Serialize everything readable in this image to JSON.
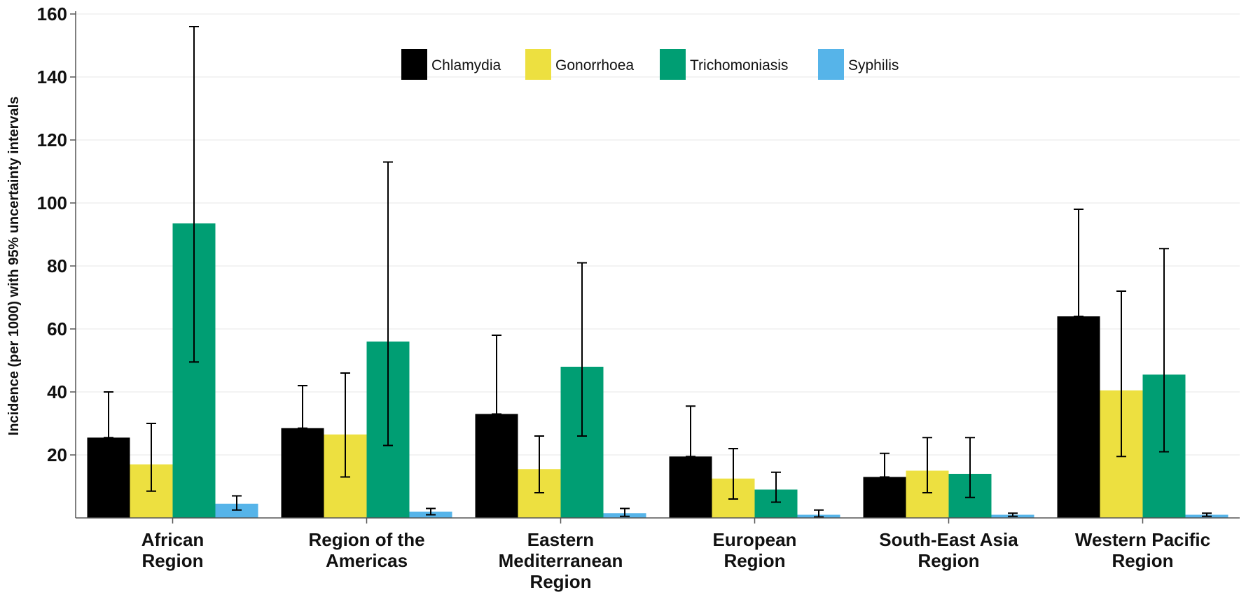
{
  "chart_data": {
    "type": "bar",
    "ylabel": "Incidence (per 1000) with 95% uncertainty intervals",
    "ylim": [
      0,
      160
    ],
    "yticks": [
      20,
      40,
      60,
      80,
      100,
      120,
      140,
      160
    ],
    "grid": "horizontal",
    "legend_position": "top-center",
    "categories": [
      [
        "African",
        "Region"
      ],
      [
        "Region of the",
        "Americas"
      ],
      [
        "Eastern",
        "Mediterranean",
        "Region"
      ],
      [
        "European",
        "Region"
      ],
      [
        "South-East Asia",
        "Region"
      ],
      [
        "Western Pacific",
        "Region"
      ]
    ],
    "series": [
      {
        "name": "Chlamydia",
        "color": "#000000",
        "values": [
          25.5,
          28.5,
          33,
          19.5,
          13,
          64
        ],
        "lower": [
          25.5,
          28.5,
          33,
          19.5,
          13,
          64
        ],
        "upper": [
          40,
          42,
          58,
          35.5,
          20.5,
          98
        ]
      },
      {
        "name": "Gonorrhoea",
        "color": "#ede040",
        "values": [
          17,
          26.5,
          15.5,
          12.5,
          15,
          40.5
        ],
        "lower": [
          8.5,
          13,
          8,
          6,
          8,
          19.5
        ],
        "upper": [
          30,
          46,
          26,
          22,
          25.5,
          72
        ]
      },
      {
        "name": "Trichomoniasis",
        "color": "#009e73",
        "values": [
          93.5,
          56,
          48,
          9,
          14,
          45.5
        ],
        "lower": [
          49.5,
          23,
          26,
          5,
          6.5,
          21
        ],
        "upper": [
          156,
          113,
          81,
          14.5,
          25.5,
          85.5
        ]
      },
      {
        "name": "Syphilis",
        "color": "#56b4e9",
        "values": [
          4.5,
          2,
          1.5,
          1,
          1,
          1
        ],
        "lower": [
          2.5,
          1,
          0.5,
          0.3,
          0.5,
          0.5
        ],
        "upper": [
          7,
          3,
          3,
          2.5,
          1.5,
          1.5
        ]
      }
    ]
  }
}
